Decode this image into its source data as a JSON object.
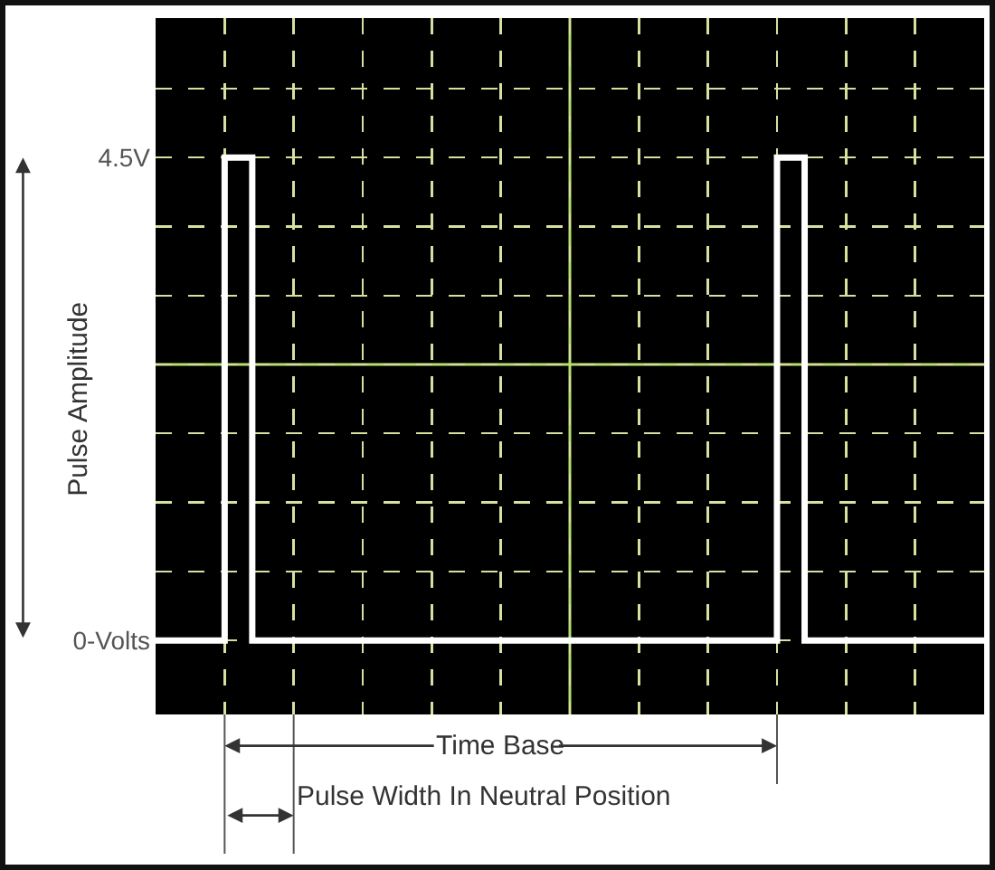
{
  "chart_data": {
    "type": "step",
    "categories": [
      null,
      null,
      null,
      null,
      null,
      null,
      null,
      null,
      null,
      null,
      null,
      null,
      null,
      null,
      null,
      null,
      null,
      null,
      null,
      null,
      null,
      null,
      null,
      null,
      null,
      null,
      null,
      null,
      null,
      null,
      null,
      null,
      null,
      null,
      null,
      null,
      null,
      null,
      null,
      null,
      null,
      null,
      null,
      null,
      null,
      null,
      null,
      null,
      null,
      null,
      null,
      null,
      null,
      null,
      null,
      null,
      null,
      null,
      null,
      null,
      null
    ],
    "series": [
      {
        "color": "#ffffff",
        "values": [
          0,
          0,
          0,
          0,
          0,
          4.5,
          4.5,
          0,
          0,
          0,
          0,
          0,
          0,
          0,
          0,
          0,
          0,
          0,
          0,
          0,
          0,
          0,
          0,
          0,
          0,
          0,
          0,
          0,
          0,
          0,
          0,
          0,
          0,
          0,
          0,
          0,
          0,
          0,
          0,
          0,
          0,
          0,
          0,
          0,
          0,
          4.5,
          4.5,
          0,
          0,
          0,
          0,
          0,
          0,
          0,
          0,
          0,
          0,
          0,
          0,
          0,
          0
        ]
      }
    ],
    "ylim": [
      -0.69,
      5.8
    ],
    "yticks": [
      {
        "value": 0,
        "label": "0-Volts"
      },
      {
        "value": 0.643,
        "label": null
      },
      {
        "value": 1.286,
        "label": null
      },
      {
        "value": 1.929,
        "label": null
      },
      {
        "value": 2.571,
        "label": null
      },
      {
        "value": 3.214,
        "label": null
      },
      {
        "value": 3.857,
        "label": null
      },
      {
        "value": 4.5,
        "label": "4.5V"
      },
      {
        "value": 5.143,
        "label": null
      }
    ],
    "tick_labels": "y",
    "grid": true,
    "line_style": "solid",
    "annotations": [
      "Pulse Amplitude",
      "Time Base",
      "Pulse Width In Neutral Position"
    ]
  }
}
